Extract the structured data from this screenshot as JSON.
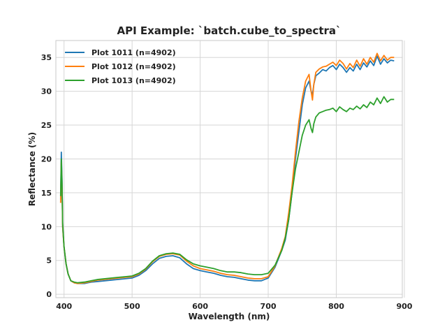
{
  "chart_data": {
    "type": "line",
    "title": "API Example: `batch.cube_to_spectra`",
    "xlabel": "Wavelength (nm)",
    "ylabel": "Reflectance (%)",
    "xlim": [
      388,
      897
    ],
    "ylim": [
      -0.5,
      37.5
    ],
    "xticks": [
      400,
      500,
      600,
      700,
      800,
      900
    ],
    "yticks": [
      0,
      5,
      10,
      15,
      20,
      25,
      30,
      35
    ],
    "grid": true,
    "legend_position": "top-left",
    "series": [
      {
        "name": "Plot 1011 (n=4902)",
        "color": "#1f77b4",
        "points": [
          [
            395,
            14.0
          ],
          [
            396,
            21.0
          ],
          [
            397,
            17.0
          ],
          [
            398,
            10.0
          ],
          [
            400,
            7.0
          ],
          [
            403,
            4.5
          ],
          [
            406,
            3.0
          ],
          [
            410,
            2.0
          ],
          [
            415,
            1.7
          ],
          [
            420,
            1.6
          ],
          [
            430,
            1.6
          ],
          [
            440,
            1.8
          ],
          [
            450,
            1.9
          ],
          [
            460,
            2.0
          ],
          [
            470,
            2.1
          ],
          [
            480,
            2.2
          ],
          [
            490,
            2.3
          ],
          [
            500,
            2.4
          ],
          [
            510,
            2.8
          ],
          [
            520,
            3.5
          ],
          [
            530,
            4.5
          ],
          [
            540,
            5.3
          ],
          [
            550,
            5.6
          ],
          [
            560,
            5.7
          ],
          [
            570,
            5.4
          ],
          [
            580,
            4.5
          ],
          [
            590,
            3.8
          ],
          [
            600,
            3.5
          ],
          [
            610,
            3.3
          ],
          [
            620,
            3.1
          ],
          [
            630,
            2.8
          ],
          [
            640,
            2.6
          ],
          [
            650,
            2.5
          ],
          [
            660,
            2.3
          ],
          [
            670,
            2.1
          ],
          [
            680,
            2.0
          ],
          [
            690,
            2.0
          ],
          [
            700,
            2.4
          ],
          [
            710,
            4.0
          ],
          [
            720,
            6.5
          ],
          [
            725,
            8.0
          ],
          [
            730,
            11.0
          ],
          [
            735,
            15.0
          ],
          [
            740,
            20.0
          ],
          [
            745,
            24.0
          ],
          [
            750,
            28.0
          ],
          [
            755,
            30.5
          ],
          [
            760,
            31.5
          ],
          [
            763,
            30.0
          ],
          [
            765,
            29.5
          ],
          [
            767,
            31.0
          ],
          [
            770,
            32.3
          ],
          [
            775,
            32.7
          ],
          [
            780,
            33.2
          ],
          [
            785,
            33.0
          ],
          [
            790,
            33.5
          ],
          [
            795,
            33.8
          ],
          [
            800,
            33.2
          ],
          [
            805,
            34.0
          ],
          [
            810,
            33.5
          ],
          [
            815,
            32.8
          ],
          [
            820,
            33.5
          ],
          [
            825,
            33.0
          ],
          [
            830,
            34.0
          ],
          [
            835,
            33.2
          ],
          [
            840,
            34.2
          ],
          [
            845,
            33.6
          ],
          [
            850,
            34.5
          ],
          [
            855,
            33.8
          ],
          [
            860,
            35.2
          ],
          [
            865,
            34.0
          ],
          [
            870,
            34.8
          ],
          [
            875,
            34.2
          ],
          [
            880,
            34.6
          ],
          [
            885,
            34.5
          ]
        ]
      },
      {
        "name": "Plot 1012 (n=4902)",
        "color": "#ff7f0e",
        "points": [
          [
            395,
            13.5
          ],
          [
            396,
            19.5
          ],
          [
            397,
            16.0
          ],
          [
            398,
            10.0
          ],
          [
            400,
            7.0
          ],
          [
            403,
            4.5
          ],
          [
            406,
            3.0
          ],
          [
            410,
            2.0
          ],
          [
            415,
            1.7
          ],
          [
            420,
            1.6
          ],
          [
            430,
            1.7
          ],
          [
            440,
            1.9
          ],
          [
            450,
            2.1
          ],
          [
            460,
            2.2
          ],
          [
            470,
            2.3
          ],
          [
            480,
            2.4
          ],
          [
            490,
            2.5
          ],
          [
            500,
            2.6
          ],
          [
            510,
            3.0
          ],
          [
            520,
            3.7
          ],
          [
            530,
            4.8
          ],
          [
            540,
            5.6
          ],
          [
            550,
            5.9
          ],
          [
            560,
            6.0
          ],
          [
            570,
            5.8
          ],
          [
            580,
            4.9
          ],
          [
            590,
            4.2
          ],
          [
            600,
            3.8
          ],
          [
            610,
            3.6
          ],
          [
            620,
            3.4
          ],
          [
            630,
            3.1
          ],
          [
            640,
            2.9
          ],
          [
            650,
            2.8
          ],
          [
            660,
            2.6
          ],
          [
            670,
            2.4
          ],
          [
            680,
            2.3
          ],
          [
            690,
            2.3
          ],
          [
            700,
            2.6
          ],
          [
            710,
            4.2
          ],
          [
            720,
            6.8
          ],
          [
            725,
            8.5
          ],
          [
            730,
            12.0
          ],
          [
            735,
            16.0
          ],
          [
            740,
            21.0
          ],
          [
            745,
            25.5
          ],
          [
            750,
            29.0
          ],
          [
            755,
            31.5
          ],
          [
            760,
            32.5
          ],
          [
            763,
            30.0
          ],
          [
            765,
            28.7
          ],
          [
            767,
            31.0
          ],
          [
            770,
            32.8
          ],
          [
            775,
            33.3
          ],
          [
            780,
            33.6
          ],
          [
            785,
            33.7
          ],
          [
            790,
            34.0
          ],
          [
            795,
            34.3
          ],
          [
            800,
            33.8
          ],
          [
            805,
            34.6
          ],
          [
            810,
            34.1
          ],
          [
            815,
            33.3
          ],
          [
            820,
            34.1
          ],
          [
            825,
            33.5
          ],
          [
            830,
            34.6
          ],
          [
            835,
            33.7
          ],
          [
            840,
            34.8
          ],
          [
            845,
            34.0
          ],
          [
            850,
            35.0
          ],
          [
            855,
            34.3
          ],
          [
            860,
            35.6
          ],
          [
            865,
            34.5
          ],
          [
            870,
            35.3
          ],
          [
            875,
            34.6
          ],
          [
            880,
            35.0
          ],
          [
            885,
            35.0
          ]
        ]
      },
      {
        "name": "Plot 1013 (n=4902)",
        "color": "#2ca02c",
        "points": [
          [
            395,
            14.5
          ],
          [
            396,
            20.0
          ],
          [
            397,
            16.5
          ],
          [
            398,
            10.5
          ],
          [
            400,
            7.0
          ],
          [
            403,
            4.5
          ],
          [
            406,
            3.0
          ],
          [
            410,
            2.0
          ],
          [
            415,
            1.8
          ],
          [
            420,
            1.7
          ],
          [
            430,
            1.8
          ],
          [
            440,
            2.0
          ],
          [
            450,
            2.2
          ],
          [
            460,
            2.3
          ],
          [
            470,
            2.4
          ],
          [
            480,
            2.5
          ],
          [
            490,
            2.6
          ],
          [
            500,
            2.7
          ],
          [
            510,
            3.1
          ],
          [
            520,
            3.8
          ],
          [
            530,
            4.9
          ],
          [
            540,
            5.7
          ],
          [
            550,
            6.0
          ],
          [
            560,
            6.1
          ],
          [
            570,
            5.9
          ],
          [
            580,
            5.1
          ],
          [
            590,
            4.5
          ],
          [
            600,
            4.2
          ],
          [
            610,
            4.0
          ],
          [
            620,
            3.8
          ],
          [
            630,
            3.5
          ],
          [
            640,
            3.3
          ],
          [
            650,
            3.3
          ],
          [
            660,
            3.2
          ],
          [
            670,
            3.0
          ],
          [
            680,
            2.9
          ],
          [
            690,
            2.9
          ],
          [
            700,
            3.1
          ],
          [
            710,
            4.3
          ],
          [
            720,
            6.5
          ],
          [
            725,
            8.3
          ],
          [
            730,
            11.0
          ],
          [
            735,
            15.0
          ],
          [
            740,
            18.5
          ],
          [
            745,
            21.0
          ],
          [
            750,
            23.5
          ],
          [
            755,
            25.0
          ],
          [
            760,
            25.8
          ],
          [
            763,
            24.5
          ],
          [
            765,
            23.9
          ],
          [
            767,
            25.2
          ],
          [
            770,
            26.2
          ],
          [
            775,
            26.8
          ],
          [
            780,
            27.0
          ],
          [
            785,
            27.2
          ],
          [
            790,
            27.3
          ],
          [
            795,
            27.5
          ],
          [
            800,
            27.0
          ],
          [
            805,
            27.7
          ],
          [
            810,
            27.3
          ],
          [
            815,
            27.0
          ],
          [
            820,
            27.5
          ],
          [
            825,
            27.3
          ],
          [
            830,
            27.8
          ],
          [
            835,
            27.4
          ],
          [
            840,
            28.0
          ],
          [
            845,
            27.6
          ],
          [
            850,
            28.4
          ],
          [
            855,
            28.0
          ],
          [
            860,
            29.0
          ],
          [
            865,
            28.2
          ],
          [
            870,
            29.2
          ],
          [
            875,
            28.4
          ],
          [
            880,
            28.8
          ],
          [
            885,
            28.8
          ]
        ]
      }
    ]
  }
}
